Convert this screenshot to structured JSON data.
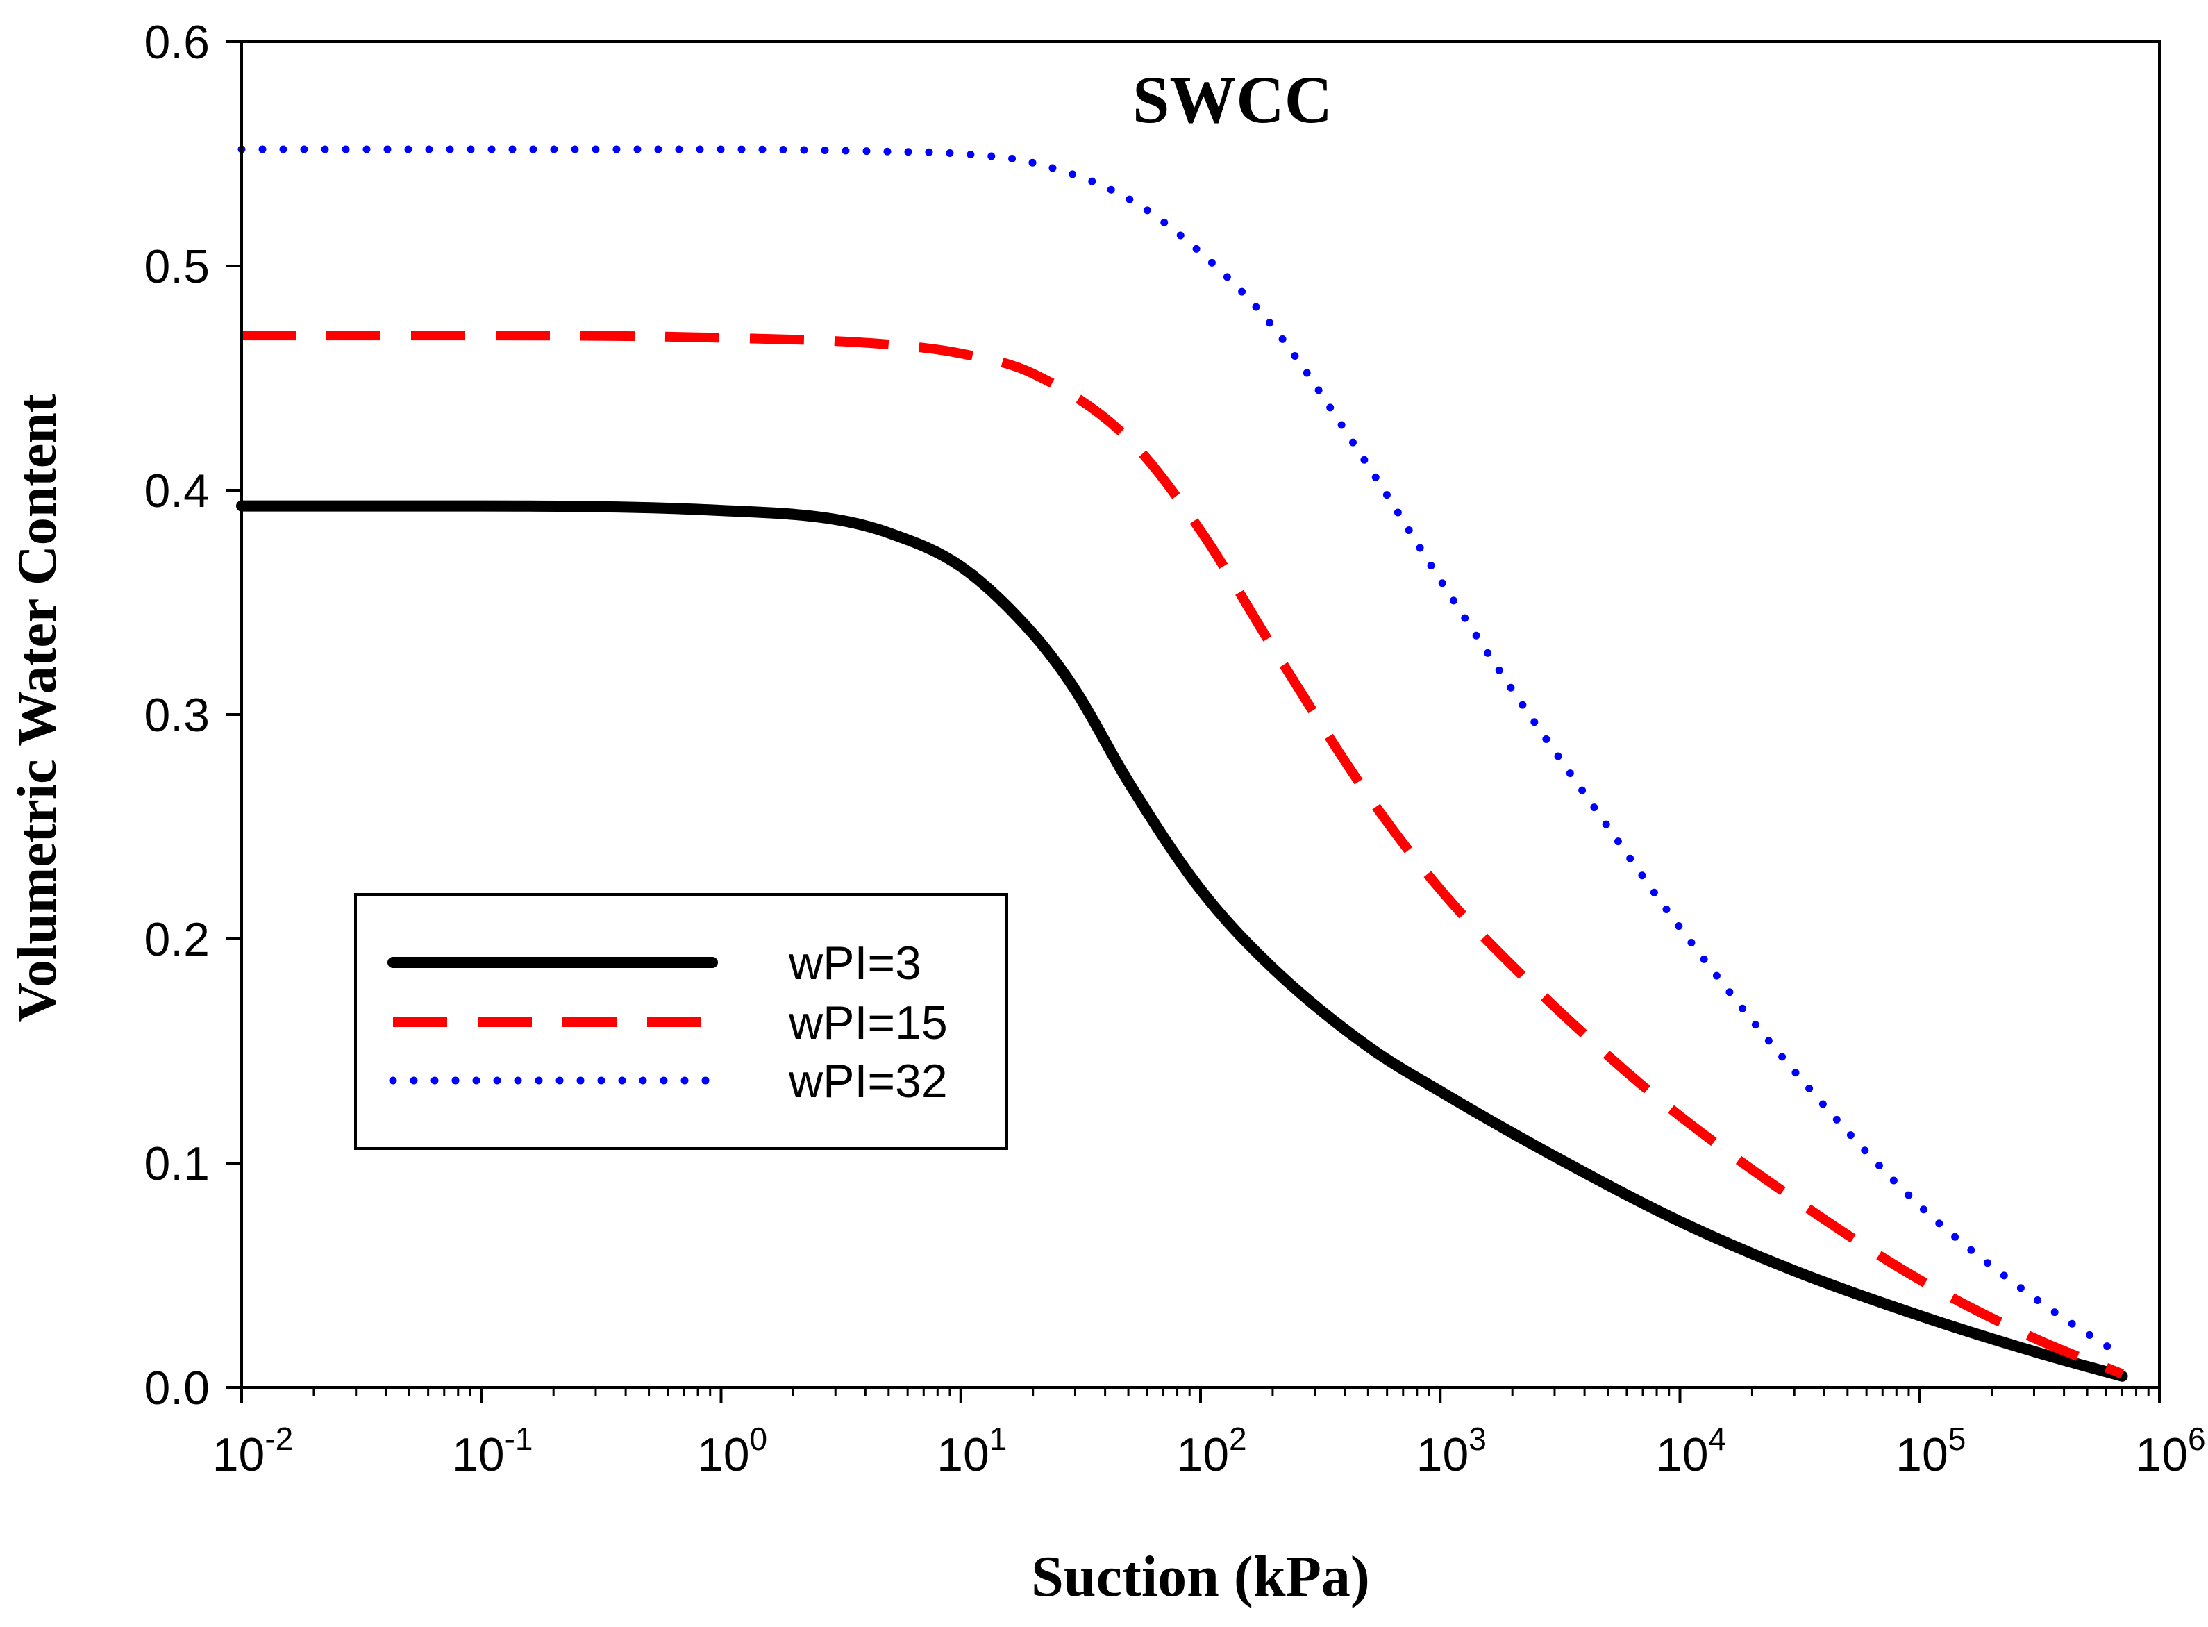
{
  "chart_data": {
    "type": "line",
    "title": "SWCC",
    "xlabel": "Suction (kPa)",
    "ylabel": "Volumetric Water Content",
    "x_scale": "log",
    "xlim": [
      0.01,
      1000000
    ],
    "ylim": [
      0.0,
      0.6
    ],
    "x_ticks": [
      {
        "base": "10",
        "exp": "-2"
      },
      {
        "base": "10",
        "exp": "-1"
      },
      {
        "base": "10",
        "exp": "0"
      },
      {
        "base": "10",
        "exp": "1"
      },
      {
        "base": "10",
        "exp": "2"
      },
      {
        "base": "10",
        "exp": "3"
      },
      {
        "base": "10",
        "exp": "4"
      },
      {
        "base": "10",
        "exp": "5"
      },
      {
        "base": "10",
        "exp": "6"
      }
    ],
    "y_ticks": [
      "0.0",
      "0.1",
      "0.2",
      "0.3",
      "0.4",
      "0.5",
      "0.6"
    ],
    "legend_position": "lower-left",
    "series": [
      {
        "name": "wPI=3",
        "style": "solid",
        "color": "#000000",
        "x": [
          0.01,
          0.1,
          1,
          3,
          5,
          10,
          20,
          30,
          50,
          100,
          200,
          500,
          1000,
          3000,
          10000,
          30000,
          100000,
          300000,
          700000
        ],
        "y": [
          0.393,
          0.393,
          0.391,
          0.387,
          0.381,
          0.366,
          0.336,
          0.311,
          0.27,
          0.222,
          0.187,
          0.152,
          0.132,
          0.103,
          0.074,
          0.052,
          0.032,
          0.016,
          0.005
        ]
      },
      {
        "name": "wPI=15",
        "style": "dashed",
        "color": "#ff0000",
        "x": [
          0.01,
          0.1,
          1,
          5,
          10,
          20,
          50,
          100,
          200,
          500,
          1000,
          2000,
          5000,
          10000,
          30000,
          100000,
          300000,
          700000
        ],
        "y": [
          0.469,
          0.469,
          0.468,
          0.465,
          0.461,
          0.452,
          0.423,
          0.382,
          0.33,
          0.264,
          0.222,
          0.188,
          0.148,
          0.121,
          0.084,
          0.048,
          0.022,
          0.006
        ]
      },
      {
        "name": "wPI=32",
        "style": "dotted",
        "color": "#0000ff",
        "x": [
          0.01,
          0.1,
          1,
          5,
          10,
          20,
          50,
          100,
          200,
          500,
          1000,
          2000,
          5000,
          10000,
          30000,
          100000,
          300000,
          700000
        ],
        "y": [
          0.552,
          0.552,
          0.552,
          0.551,
          0.55,
          0.546,
          0.53,
          0.506,
          0.473,
          0.411,
          0.36,
          0.311,
          0.25,
          0.205,
          0.141,
          0.081,
          0.04,
          0.014
        ]
      }
    ]
  }
}
